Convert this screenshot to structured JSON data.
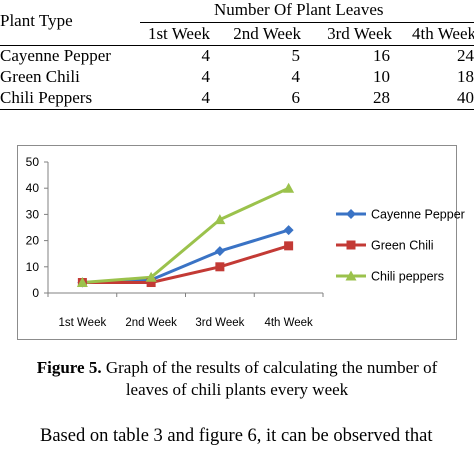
{
  "table": {
    "header_first": "Plant Type",
    "header_group": "Number Of Plant Leaves",
    "weeks": [
      "1st Week",
      "2nd Week",
      "3rd Week",
      "4th Week"
    ],
    "rows": [
      {
        "name": "Cayenne Pepper",
        "values": [
          "4",
          "5",
          "16",
          "24"
        ]
      },
      {
        "name": "Green Chili",
        "values": [
          "4",
          "4",
          "10",
          "18"
        ]
      },
      {
        "name": "Chili Peppers",
        "values": [
          "4",
          "6",
          "28",
          "40"
        ]
      }
    ]
  },
  "chart_data": {
    "type": "line",
    "categories": [
      "1st Week",
      "2nd Week",
      "3rd Week",
      "4th Week"
    ],
    "series": [
      {
        "name": "Cayenne Pepper",
        "values": [
          4,
          5,
          16,
          24
        ],
        "color": "#3a73c5",
        "marker": "diamond"
      },
      {
        "name": "Green Chili",
        "values": [
          4,
          4,
          10,
          18
        ],
        "color": "#c33a35",
        "marker": "square"
      },
      {
        "name": "Chili peppers",
        "values": [
          4,
          6,
          28,
          40
        ],
        "color": "#9bc24c",
        "marker": "triangle"
      }
    ],
    "y_ticks": [
      0,
      10,
      20,
      30,
      40,
      50
    ],
    "ylim": [
      0,
      50
    ],
    "title": "",
    "xlabel": "",
    "ylabel": "",
    "grid": false,
    "legend_position": "right"
  },
  "caption": {
    "label": "Figure 5.",
    "line1": " Graph of the results of calculating the number of",
    "line2": "leaves of chili plants every week"
  },
  "body_text": "Based on table 3 and figure 6, it can be observed that"
}
